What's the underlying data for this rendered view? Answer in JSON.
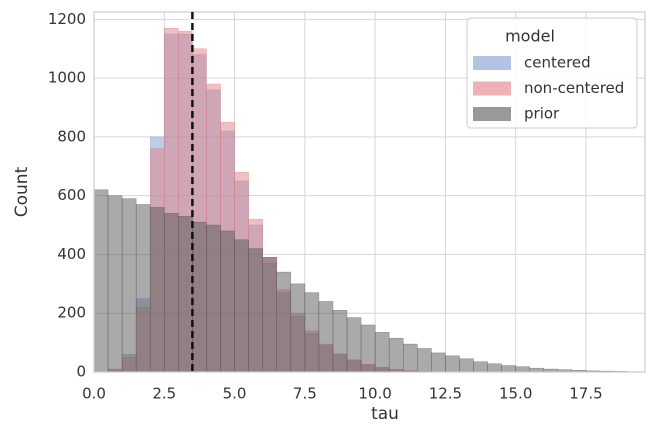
{
  "chart_data": {
    "type": "histogram",
    "xlabel": "tau",
    "ylabel": "Count",
    "xlim": [
      0,
      19.6
    ],
    "ylim": [
      0,
      1225
    ],
    "xticks": [
      {
        "value": 0,
        "label": "0.0"
      },
      2.5,
      {
        "value": 5,
        "label": "5.0"
      },
      7.5,
      {
        "value": 10,
        "label": "10.0"
      },
      12.5,
      {
        "value": 15,
        "label": "15.0"
      },
      17.5
    ],
    "yticks": [
      0,
      200,
      400,
      600,
      800,
      1000,
      1200
    ],
    "grid": true,
    "vline": 3.5,
    "legend": {
      "title": "model",
      "position": "upper right"
    },
    "series": [
      {
        "name": "centered",
        "color": "#7f9bd0",
        "bins": [
          0.5,
          1,
          1.5,
          2,
          2.5,
          3,
          3.5,
          4,
          4.5,
          5,
          5.5,
          6,
          6.5,
          7,
          7.5,
          8,
          8.5,
          9,
          9.5,
          10,
          10.5,
          11,
          11.5,
          12
        ],
        "values": [
          10,
          60,
          250,
          800,
          1150,
          1150,
          1080,
          960,
          820,
          650,
          500,
          370,
          270,
          190,
          130,
          90,
          60,
          40,
          25,
          15,
          8,
          4,
          2
        ]
      },
      {
        "name": "non-centered",
        "color": "#e07f84",
        "bins": [
          0.5,
          1,
          1.5,
          2,
          2.5,
          3,
          3.5,
          4,
          4.5,
          5,
          5.5,
          6,
          6.5,
          7,
          7.5,
          8,
          8.5,
          9,
          9.5,
          10,
          10.5,
          11,
          11.5,
          12
        ],
        "values": [
          8,
          50,
          220,
          760,
          1170,
          1160,
          1100,
          980,
          850,
          680,
          520,
          390,
          280,
          200,
          140,
          95,
          62,
          42,
          26,
          16,
          9,
          5,
          2
        ]
      },
      {
        "name": "prior",
        "color": "#555555",
        "bins": [
          0,
          0.5,
          1,
          1.5,
          2,
          2.5,
          3,
          3.5,
          4,
          4.5,
          5,
          5.5,
          6,
          6.5,
          7,
          7.5,
          8,
          8.5,
          9,
          9.5,
          10,
          10.5,
          11,
          11.5,
          12,
          12.5,
          13,
          13.5,
          14,
          14.5,
          15,
          15.5,
          16,
          16.5,
          17,
          17.5,
          18,
          18.5,
          19,
          19.5
        ],
        "values": [
          620,
          600,
          590,
          570,
          560,
          540,
          530,
          510,
          500,
          480,
          450,
          420,
          390,
          340,
          300,
          270,
          240,
          210,
          185,
          160,
          135,
          115,
          95,
          80,
          65,
          55,
          45,
          35,
          28,
          22,
          18,
          13,
          10,
          8,
          6,
          4,
          3,
          2,
          1
        ]
      }
    ]
  }
}
